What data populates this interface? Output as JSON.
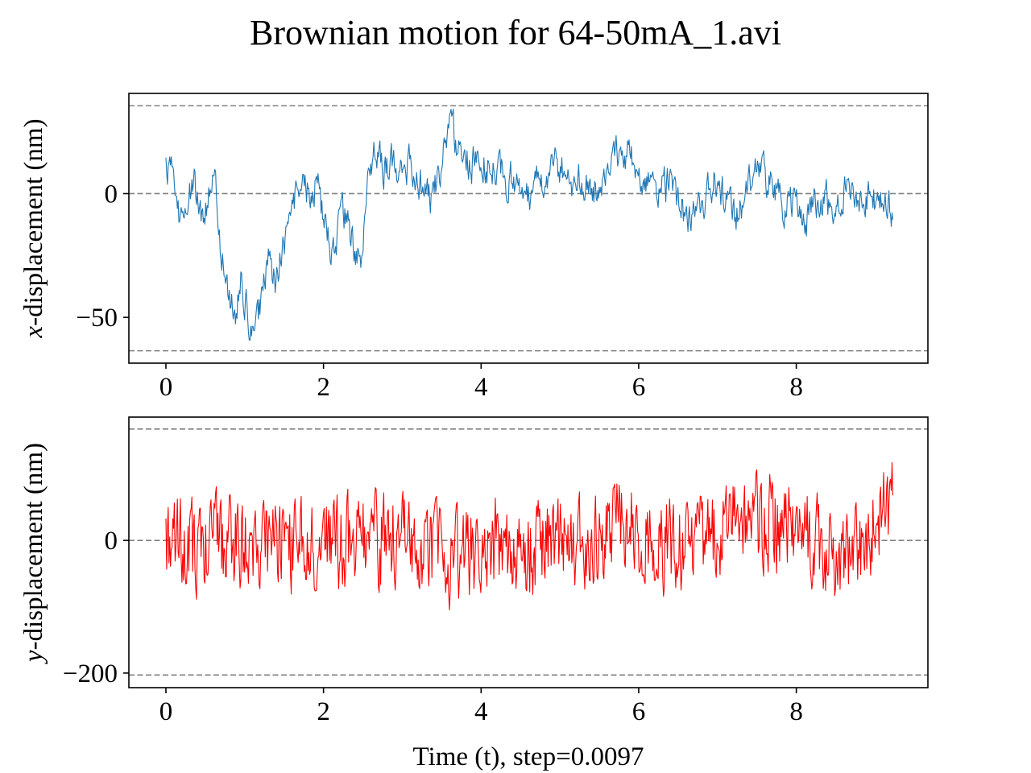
{
  "figure": {
    "title": "Brownian motion for 64-50mA_1.avi"
  },
  "chart_data": [
    {
      "type": "line",
      "name": "x-displacement panel",
      "ylabel_var": "x",
      "ylabel_rest": "-displacement (nm)",
      "xlabel": "",
      "xlim": [
        -0.47,
        9.67
      ],
      "ylim": [
        -68.5,
        40.5
      ],
      "xticks": [
        0,
        2,
        4,
        6,
        8
      ],
      "yticks": [
        -50,
        0
      ],
      "ytick_labels": [
        "−50",
        "0"
      ],
      "reference_lines": [
        35.5,
        0,
        -63.5
      ],
      "reference_line_color": "#808080",
      "line_color": "#1f77b4",
      "x_step": 0.0097,
      "x_start": 0,
      "y_waypoints": [
        [
          0.0,
          12
        ],
        [
          0.1,
          8
        ],
        [
          0.18,
          -12
        ],
        [
          0.25,
          -6
        ],
        [
          0.35,
          5
        ],
        [
          0.45,
          -8
        ],
        [
          0.55,
          0
        ],
        [
          0.62,
          5
        ],
        [
          0.7,
          -25
        ],
        [
          0.8,
          -40
        ],
        [
          0.88,
          -52
        ],
        [
          0.95,
          -35
        ],
        [
          1.05,
          -50
        ],
        [
          1.12,
          -62
        ],
        [
          1.22,
          -40
        ],
        [
          1.3,
          -30
        ],
        [
          1.4,
          -35
        ],
        [
          1.5,
          -20
        ],
        [
          1.6,
          -8
        ],
        [
          1.7,
          5
        ],
        [
          1.8,
          0
        ],
        [
          1.9,
          5
        ],
        [
          2.0,
          -10
        ],
        [
          2.1,
          -22
        ],
        [
          2.2,
          -15
        ],
        [
          2.3,
          -8
        ],
        [
          2.4,
          -25
        ],
        [
          2.5,
          -22
        ],
        [
          2.55,
          5
        ],
        [
          2.65,
          15
        ],
        [
          2.8,
          10
        ],
        [
          3.0,
          15
        ],
        [
          3.2,
          5
        ],
        [
          3.35,
          -2
        ],
        [
          3.5,
          10
        ],
        [
          3.58,
          27
        ],
        [
          3.7,
          20
        ],
        [
          3.85,
          12
        ],
        [
          4.0,
          15
        ],
        [
          4.2,
          8
        ],
        [
          4.4,
          5
        ],
        [
          4.6,
          0
        ],
        [
          4.8,
          8
        ],
        [
          5.0,
          12
        ],
        [
          5.2,
          5
        ],
        [
          5.4,
          0
        ],
        [
          5.6,
          12
        ],
        [
          5.8,
          18
        ],
        [
          6.0,
          10
        ],
        [
          6.2,
          0
        ],
        [
          6.4,
          2
        ],
        [
          6.6,
          -10
        ],
        [
          6.8,
          -2
        ],
        [
          7.0,
          5
        ],
        [
          7.2,
          -10
        ],
        [
          7.35,
          0
        ],
        [
          7.5,
          12
        ],
        [
          7.7,
          0
        ],
        [
          7.9,
          -5
        ],
        [
          8.1,
          -12
        ],
        [
          8.3,
          -2
        ],
        [
          8.5,
          -5
        ],
        [
          8.7,
          5
        ],
        [
          8.9,
          -2
        ],
        [
          9.1,
          -5
        ],
        [
          9.23,
          -10
        ]
      ],
      "noise_amplitude": 6.5
    },
    {
      "type": "line",
      "name": "y-displacement panel",
      "ylabel_var": "y",
      "ylabel_rest": "-displacement (nm)",
      "xlabel": "Time (t), step=0.0097",
      "xlim": [
        -0.47,
        9.67
      ],
      "ylim": [
        -222,
        186
      ],
      "xticks": [
        0,
        2,
        4,
        6,
        8
      ],
      "yticks": [
        -200,
        0
      ],
      "ytick_labels": [
        "−200",
        "0"
      ],
      "reference_lines": [
        168,
        0,
        -203
      ],
      "reference_line_color": "#808080",
      "line_color": "#ff0000",
      "x_step": 0.0097,
      "x_start": 0,
      "y_waypoints": [
        [
          0.0,
          10
        ],
        [
          0.3,
          -20
        ],
        [
          0.6,
          0
        ],
        [
          1.0,
          -10
        ],
        [
          1.4,
          0
        ],
        [
          1.8,
          -10
        ],
        [
          2.2,
          0
        ],
        [
          2.6,
          -5
        ],
        [
          3.0,
          10
        ],
        [
          3.4,
          -15
        ],
        [
          3.8,
          -30
        ],
        [
          4.2,
          0
        ],
        [
          4.6,
          -20
        ],
        [
          5.0,
          0
        ],
        [
          5.4,
          -15
        ],
        [
          5.8,
          30
        ],
        [
          6.2,
          0
        ],
        [
          6.6,
          -20
        ],
        [
          7.0,
          10
        ],
        [
          7.4,
          40
        ],
        [
          7.8,
          20
        ],
        [
          8.2,
          0
        ],
        [
          8.6,
          -30
        ],
        [
          9.0,
          20
        ],
        [
          9.23,
          60
        ]
      ],
      "noise_amplitude": 62
    }
  ]
}
